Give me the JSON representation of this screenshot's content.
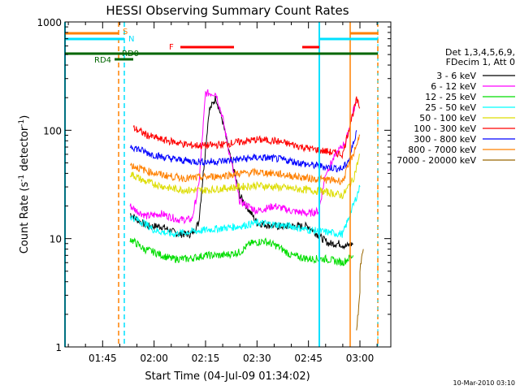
{
  "chart_data": {
    "type": "line",
    "title": "HESSI Observing Summary Count Rates",
    "xlabel": "Start Time (04-Jul-09 01:34:02)",
    "ylabel_main": "Count Rate (s",
    "ylabel_sup1": "-1",
    "ylabel_mid": " detector",
    "ylabel_sup2": "-1",
    "ylabel_end": ")",
    "y_scale": "log",
    "ylim": [
      1,
      1000
    ],
    "xlim": [
      "01:34:02",
      "03:09:00"
    ],
    "x_ticks": [
      "01:45",
      "02:00",
      "02:15",
      "02:30",
      "02:45",
      "03:00"
    ],
    "y_ticks": [
      "1",
      "10",
      "100",
      "1000"
    ],
    "legend": {
      "header1": "Det 1,3,4,5,6,9,",
      "header2": "FDecim 1, Att 0",
      "placement": "right",
      "entries": [
        {
          "label": "3 - 6 keV",
          "color": "#000000"
        },
        {
          "label": "6 - 12 keV",
          "color": "#ff00ff"
        },
        {
          "label": "12 - 25 keV",
          "color": "#00dd00"
        },
        {
          "label": "25 - 50 keV",
          "color": "#00ffff"
        },
        {
          "label": "50 - 100 keV",
          "color": "#dddd00"
        },
        {
          "label": "100 - 300 keV",
          "color": "#ff0000"
        },
        {
          "label": "300 - 800 keV",
          "color": "#0000ff"
        },
        {
          "label": "800 - 7000 keV",
          "color": "#ff8000"
        },
        {
          "label": "7000 - 20000 keV",
          "color": "#996600"
        }
      ]
    },
    "flags": [
      {
        "label": "S",
        "color": "#ff8000"
      },
      {
        "label": "N",
        "color": "#00e0ff"
      },
      {
        "label": "RD0",
        "color": "#006600"
      },
      {
        "label": "RD4",
        "color": "#006600"
      },
      {
        "label": "F",
        "color": "#ff0000"
      }
    ],
    "series": [
      {
        "name": "3 - 6 keV",
        "color": "#000000",
        "x": [
          "01:53",
          "01:55",
          "01:58",
          "02:02",
          "02:07",
          "02:11",
          "02:13",
          "02:16",
          "02:18",
          "02:20",
          "02:22",
          "02:25",
          "02:30",
          "02:35",
          "02:40",
          "02:45",
          "02:49",
          "02:51",
          "02:54",
          "02:56",
          "02:58"
        ],
        "y": [
          17,
          15,
          13,
          13,
          11,
          11,
          14,
          150,
          200,
          120,
          60,
          25,
          14,
          13,
          13,
          13,
          10,
          9,
          9,
          8.5,
          9
        ]
      },
      {
        "name": "6 - 12 keV",
        "color": "#ff00ff",
        "x": [
          "01:53",
          "01:55",
          "01:58",
          "02:02",
          "02:07",
          "02:11",
          "02:13",
          "02:15",
          "02:18",
          "02:20",
          "02:22",
          "02:25",
          "02:30",
          "02:35",
          "02:40",
          "02:45",
          "02:48",
          "02:50",
          "02:53",
          "02:56",
          "02:58",
          "02:59"
        ],
        "y": [
          20,
          18,
          16,
          17,
          15,
          15,
          30,
          220,
          220,
          130,
          60,
          22,
          18,
          20,
          18,
          17,
          18,
          40,
          60,
          80,
          150,
          180
        ]
      },
      {
        "name": "12 - 25 keV",
        "color": "#00dd00",
        "x": [
          "01:53",
          "01:57",
          "02:00",
          "02:05",
          "02:10",
          "02:15",
          "02:20",
          "02:25",
          "02:28",
          "02:32",
          "02:36",
          "02:40",
          "02:45",
          "02:50",
          "02:55",
          "02:58"
        ],
        "y": [
          10,
          8,
          7.5,
          6.5,
          6.5,
          7,
          7,
          7.5,
          9,
          9.5,
          8.5,
          7,
          6.5,
          6.5,
          6,
          7
        ]
      },
      {
        "name": "25 - 50 keV",
        "color": "#00ffff",
        "x": [
          "01:53",
          "01:57",
          "02:00",
          "02:05",
          "02:10",
          "02:15",
          "02:20",
          "02:25",
          "02:30",
          "02:35",
          "02:40",
          "02:45",
          "02:50",
          "02:55",
          "02:58",
          "03:00"
        ],
        "y": [
          16,
          14,
          12,
          11,
          11.5,
          12,
          12.5,
          13,
          14,
          13.5,
          13,
          12,
          11.5,
          11,
          20,
          30
        ]
      },
      {
        "name": "50 - 100 keV",
        "color": "#dddd00",
        "x": [
          "01:53",
          "01:57",
          "02:00",
          "02:05",
          "02:10",
          "02:15",
          "02:20",
          "02:25",
          "02:30",
          "02:35",
          "02:40",
          "02:45",
          "02:50",
          "02:55",
          "02:58",
          "03:00"
        ],
        "y": [
          40,
          34,
          32,
          29,
          28,
          28,
          29,
          30,
          31,
          30,
          29,
          28,
          27,
          25,
          35,
          60
        ]
      },
      {
        "name": "100 - 300 keV",
        "color": "#ff0000",
        "x": [
          "01:54",
          "01:58",
          "02:02",
          "02:06",
          "02:10",
          "02:15",
          "02:20",
          "02:25",
          "02:30",
          "02:35",
          "02:40",
          "02:45",
          "02:50",
          "02:55",
          "02:57",
          "02:59",
          "03:00"
        ],
        "y": [
          105,
          90,
          82,
          78,
          73,
          72,
          74,
          78,
          82,
          80,
          74,
          68,
          64,
          60,
          110,
          190,
          160
        ]
      },
      {
        "name": "300 - 800 keV",
        "color": "#0000ff",
        "x": [
          "01:53",
          "01:58",
          "02:02",
          "02:06",
          "02:10",
          "02:15",
          "02:20",
          "02:25",
          "02:30",
          "02:35",
          "02:40",
          "02:45",
          "02:50",
          "02:55",
          "02:57",
          "02:59"
        ],
        "y": [
          72,
          62,
          57,
          54,
          52,
          51,
          52,
          54,
          56,
          55,
          52,
          48,
          46,
          44,
          55,
          100
        ]
      },
      {
        "name": "800 - 7000 keV",
        "color": "#ff8000",
        "x": [
          "01:53",
          "01:58",
          "02:02",
          "02:06",
          "02:10",
          "02:15",
          "02:20",
          "02:25",
          "02:30",
          "02:35",
          "02:40",
          "02:45",
          "02:50",
          "02:55",
          "02:58",
          "03:00"
        ],
        "y": [
          48,
          42,
          39,
          37,
          36,
          37,
          38,
          40,
          41,
          40,
          38,
          36,
          35,
          34,
          60,
          90
        ]
      },
      {
        "name": "7000 - 20000 keV",
        "color": "#996600",
        "x": [
          "02:59",
          "03:00",
          "03:00",
          "03:01"
        ],
        "y": [
          1.5,
          3,
          5,
          8
        ]
      }
    ]
  },
  "footer_date": "10-Mar-2010 03:10"
}
